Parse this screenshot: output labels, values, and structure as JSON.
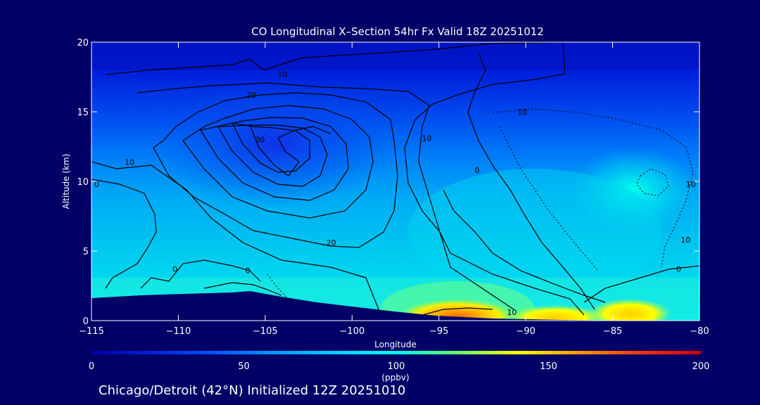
{
  "chart_data": {
    "type": "heatmap",
    "title": "CO Longitudinal X–Section 54hr  Fx Valid 18Z 20251012",
    "xlabel": "Longitude",
    "ylabel": "Altitude (km)",
    "xlim": [
      -115,
      -80
    ],
    "ylim": [
      0,
      20
    ],
    "x_ticks": [
      -115,
      -110,
      -105,
      -100,
      -95,
      -90,
      -85,
      -80
    ],
    "x_tick_labels": [
      "−115",
      "−110",
      "−105",
      "−100",
      "−95",
      "−90",
      "−85",
      "−80"
    ],
    "y_ticks": [
      0,
      5,
      10,
      15,
      20
    ],
    "y_tick_labels": [
      "0",
      "5",
      "10",
      "15",
      "20"
    ],
    "colorbar": {
      "min": 0,
      "max": 200,
      "ticks": [
        0,
        50,
        100,
        150,
        200
      ],
      "tick_labels": [
        "0",
        "50",
        "100",
        "150",
        "200"
      ],
      "unit": "(ppbv)",
      "colors": [
        "#0000a0",
        "#0022dd",
        "#0055ff",
        "#0099ff",
        "#00ccff",
        "#00ffee",
        "#66ff66",
        "#ffff00",
        "#ff9900",
        "#ff3300",
        "#cc0000"
      ]
    },
    "grid": false,
    "contour_labels": [
      {
        "text": "10",
        "lon": -104,
        "alt": 17.7
      },
      {
        "text": "20",
        "lon": -105.8,
        "alt": 16.2
      },
      {
        "text": "30",
        "lon": -105.3,
        "alt": 13.0
      },
      {
        "text": "10",
        "lon": -112.8,
        "alt": 11.4
      },
      {
        "text": "0",
        "lon": -114.7,
        "alt": 9.8
      },
      {
        "text": "20",
        "lon": -101.2,
        "alt": 5.6
      },
      {
        "text": "0",
        "lon": -110.2,
        "alt": 3.7
      },
      {
        "text": "0",
        "lon": -106,
        "alt": 3.6
      },
      {
        "text": "10",
        "lon": -95.7,
        "alt": 13.1
      },
      {
        "text": "0",
        "lon": -92.8,
        "alt": 10.8
      },
      {
        "text": "10",
        "lon": -90.2,
        "alt": 15.0
      },
      {
        "text": "10",
        "lon": -80.5,
        "alt": 9.8
      },
      {
        "text": "10",
        "lon": -80.8,
        "alt": 5.8
      },
      {
        "text": "0",
        "lon": -81.2,
        "alt": 3.7
      },
      {
        "text": "10",
        "lon": -90.8,
        "alt": 0.6
      }
    ],
    "fields": [
      {
        "lon": -104,
        "alt": 12,
        "value": 25
      },
      {
        "lon": -98,
        "alt": 17,
        "value": 15
      },
      {
        "lon": -85,
        "alt": 10,
        "value": 88
      },
      {
        "lon": -92,
        "alt": 1,
        "value": 128
      },
      {
        "lon": -84,
        "alt": 1,
        "value": 125
      },
      {
        "lon": -112,
        "alt": 5,
        "value": 68
      }
    ]
  },
  "footer": {
    "text": "Chicago/Detroit (42°N) Initialized 12Z 20251010"
  }
}
